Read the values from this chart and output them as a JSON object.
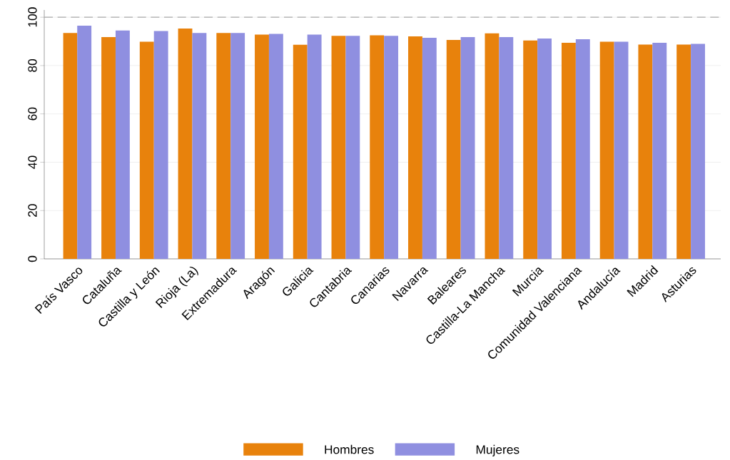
{
  "chart_data": {
    "type": "bar",
    "categories": [
      "País Vasco",
      "Cataluña",
      "Castilla y León",
      "Rioja (La)",
      "Extremadura",
      "Aragón",
      "Galicia",
      "Cantabria",
      "Canarias",
      "Navarra",
      "Baleares",
      "Castilla-La Mancha",
      "Murcia",
      "Comunidad Valenciana",
      "Andalucía",
      "Madrid",
      "Asturias"
    ],
    "series": [
      {
        "name": "Hombres",
        "color": "#e8820c",
        "values": [
          93.5,
          91.8,
          89.9,
          95.3,
          93.5,
          92.8,
          88.6,
          92.3,
          92.5,
          92.1,
          90.6,
          93.3,
          90.4,
          89.4,
          89.9,
          88.7,
          88.7
        ]
      },
      {
        "name": "Mujeres",
        "color": "#8f8fe0",
        "values": [
          96.5,
          94.5,
          94.3,
          93.5,
          93.5,
          93.1,
          92.8,
          92.3,
          92.3,
          91.5,
          91.8,
          91.8,
          91.2,
          90.9,
          89.9,
          89.4,
          89.0
        ]
      }
    ],
    "ylim": [
      0,
      103
    ],
    "yticks": [
      0,
      20,
      40,
      60,
      80,
      100
    ],
    "ref_lines": [
      {
        "axis": "y",
        "value": 100,
        "color": "#aaaaaa",
        "line_style": "dashed"
      }
    ],
    "grid": "y",
    "legend": "bottom"
  }
}
